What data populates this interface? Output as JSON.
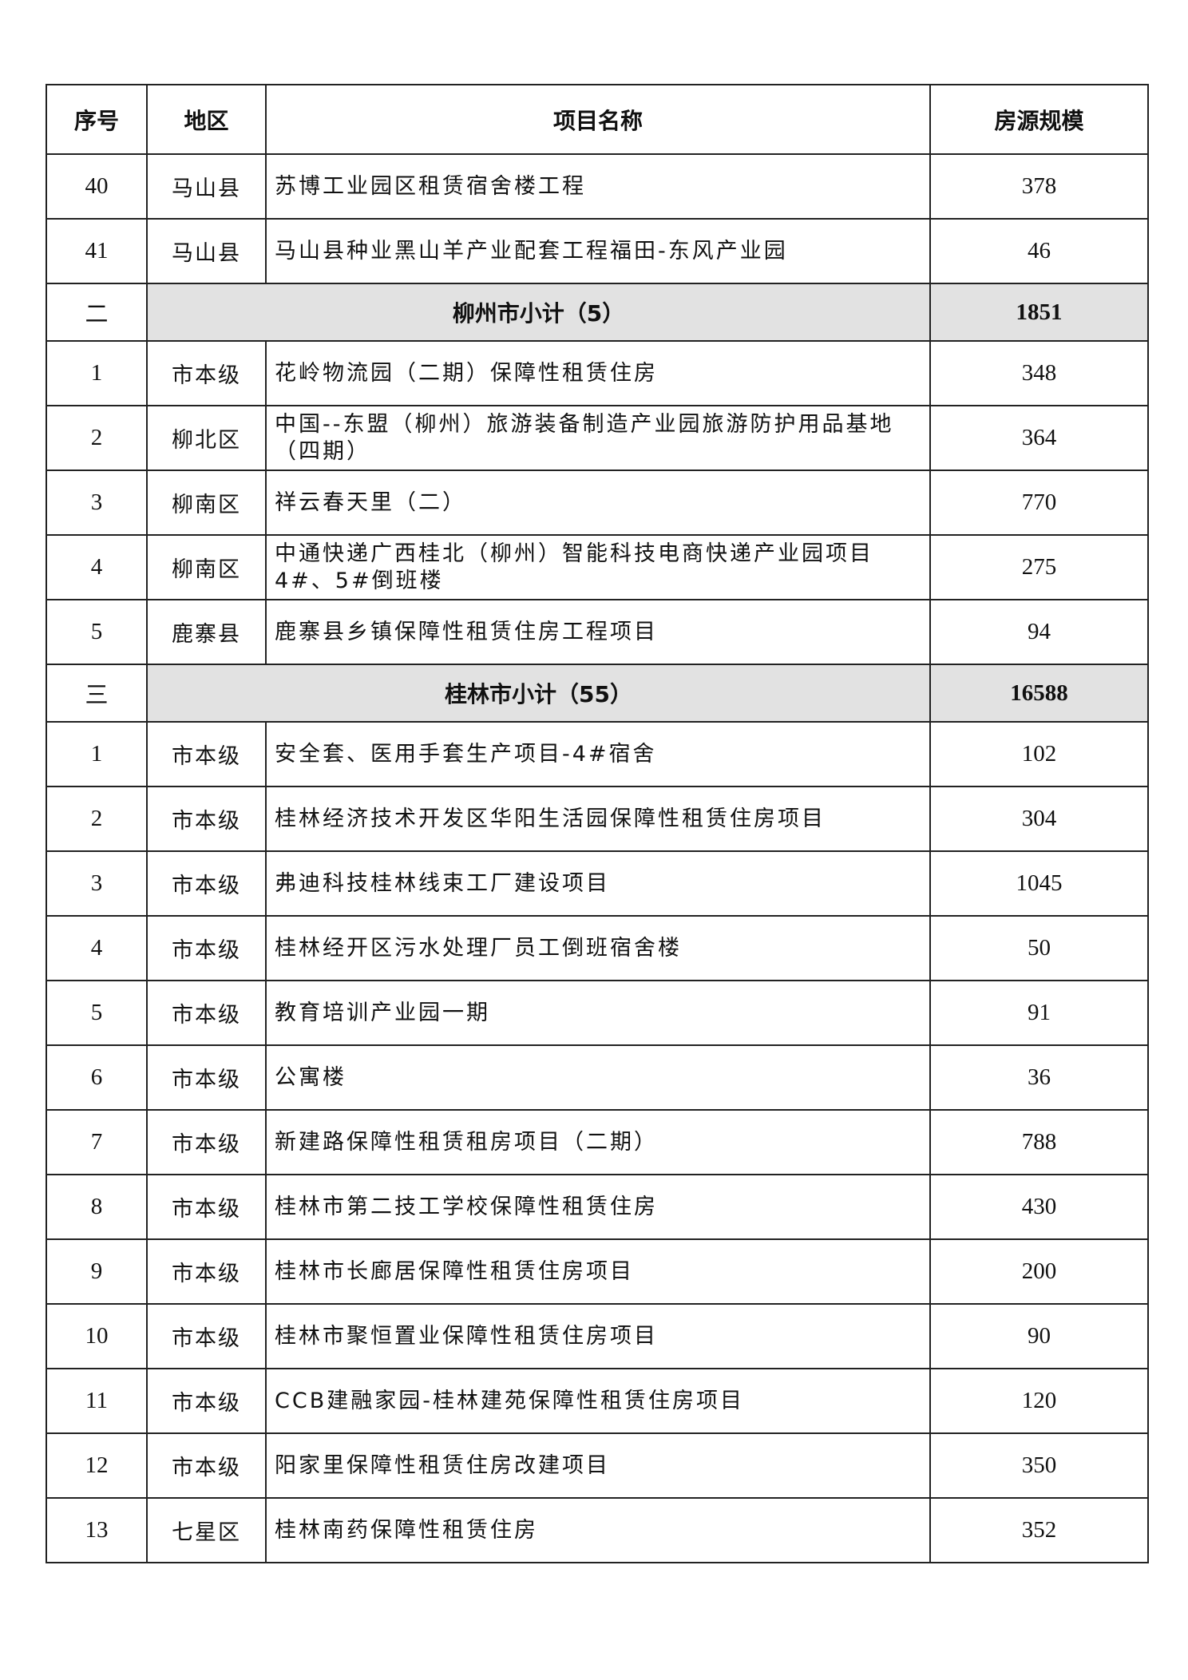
{
  "table": {
    "header": [
      "序号",
      "地区",
      "项目名称",
      "房源规模"
    ],
    "rows": [
      [
        "40",
        "马山县",
        "苏博工业园区租赁宿舍楼工程",
        "378"
      ],
      [
        "41",
        "马山县",
        "马山县种业黑山羊产业配套工程福田-东风产业园",
        "46"
      ],
      [
        "二",
        "柳州市小计（5）",
        "1851"
      ],
      [
        "1",
        "市本级",
        "花岭物流园（二期）保障性租赁住房",
        "348"
      ],
      [
        "2",
        "柳北区",
        "中国--东盟（柳州）旅游装备制造产业园旅游防护用品基地（四期）",
        "364"
      ],
      [
        "3",
        "柳南区",
        "祥云春天里（二）",
        "770"
      ],
      [
        "4",
        "柳南区",
        "中通快递广西桂北（柳州）智能科技电商快递产业园项目4#、5#倒班楼",
        "275"
      ],
      [
        "5",
        "鹿寨县",
        "鹿寨县乡镇保障性租赁住房工程项目",
        "94"
      ],
      [
        "三",
        "桂林市小计（55）",
        "16588"
      ],
      [
        "1",
        "市本级",
        "安全套、医用手套生产项目-4#宿舍",
        "102"
      ],
      [
        "2",
        "市本级",
        "桂林经济技术开发区华阳生活园保障性租赁住房项目",
        "304"
      ],
      [
        "3",
        "市本级",
        "弗迪科技桂林线束工厂建设项目",
        "1045"
      ],
      [
        "4",
        "市本级",
        "桂林经开区污水处理厂员工倒班宿舍楼",
        "50"
      ],
      [
        "5",
        "市本级",
        "教育培训产业园一期",
        "91"
      ],
      [
        "6",
        "市本级",
        "公寓楼",
        "36"
      ],
      [
        "7",
        "市本级",
        "新建路保障性租赁租房项目（二期）",
        "788"
      ],
      [
        "8",
        "市本级",
        "桂林市第二技工学校保障性租赁住房",
        "430"
      ],
      [
        "9",
        "市本级",
        "桂林市长廊居保障性租赁住房项目",
        "200"
      ],
      [
        "10",
        "市本级",
        "桂林市聚恒置业保障性租赁住房项目",
        "90"
      ],
      [
        "11",
        "市本级",
        "CCB建融家园-桂林建苑保障性租赁住房项目",
        "120"
      ],
      [
        "12",
        "市本级",
        "阳家里保障性租赁住房改建项目",
        "350"
      ],
      [
        "13",
        "七星区",
        "桂林南药保障性租赁住房",
        "352"
      ]
    ]
  }
}
